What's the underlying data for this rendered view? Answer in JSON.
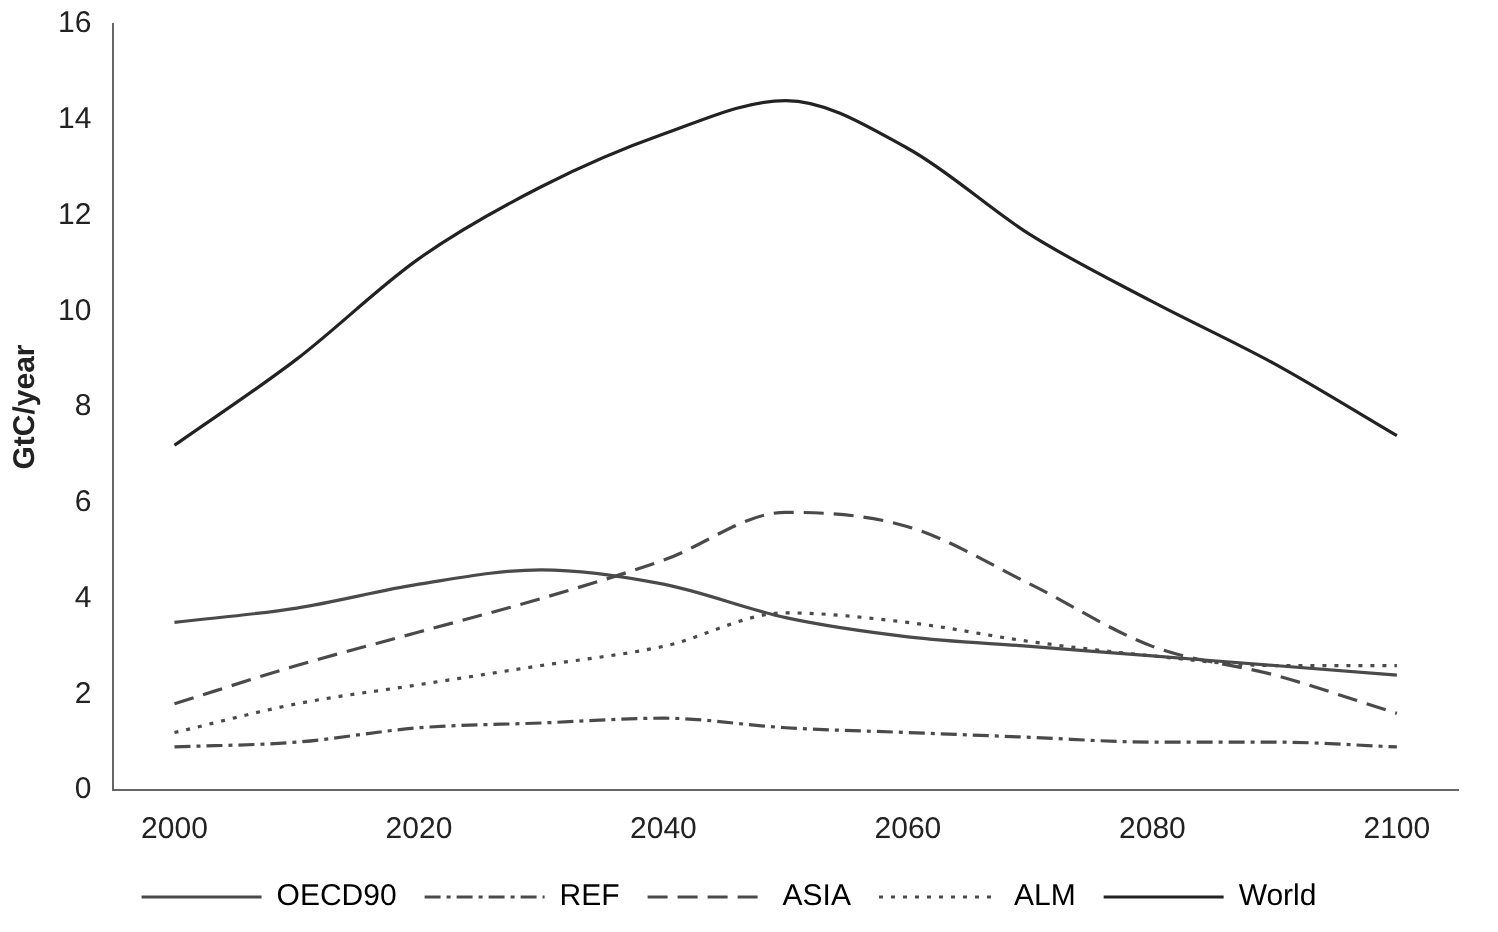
{
  "chart_data": {
    "type": "line",
    "ylabel": "GtC/year",
    "xlim": [
      1995,
      2105
    ],
    "xticks": [
      2000,
      2020,
      2040,
      2060,
      2080,
      2100
    ],
    "ylim": [
      0,
      16
    ],
    "yticks": [
      0,
      2,
      4,
      6,
      8,
      10,
      12,
      14,
      16
    ],
    "grid": false,
    "legend": "bottom",
    "marker": "none",
    "x": [
      2000,
      2010,
      2020,
      2030,
      2040,
      2050,
      2060,
      2070,
      2080,
      2090,
      2100
    ],
    "series": [
      {
        "name": "OECD90",
        "color": "#4a4a4a",
        "line_style": "solid",
        "values": [
          3.5,
          3.8,
          4.3,
          4.6,
          4.3,
          3.6,
          3.2,
          3.0,
          2.8,
          2.6,
          2.4
        ]
      },
      {
        "name": "REF",
        "color": "#4a4a4a",
        "line_style": "dashdot",
        "values": [
          0.9,
          1.0,
          1.3,
          1.4,
          1.5,
          1.3,
          1.2,
          1.1,
          1.0,
          1.0,
          0.9
        ]
      },
      {
        "name": "ASIA",
        "color": "#4a4a4a",
        "line_style": "dashed",
        "values": [
          1.8,
          2.6,
          3.3,
          4.0,
          4.8,
          5.8,
          5.5,
          4.3,
          3.0,
          2.4,
          1.6
        ]
      },
      {
        "name": "ALM",
        "color": "#4a4a4a",
        "line_style": "dotted",
        "values": [
          1.2,
          1.8,
          2.2,
          2.6,
          3.0,
          3.7,
          3.5,
          3.1,
          2.8,
          2.6,
          2.6
        ]
      },
      {
        "name": "World",
        "color": "#222222",
        "line_style": "solid",
        "values": [
          7.2,
          9.0,
          11.1,
          12.6,
          13.7,
          14.4,
          13.4,
          11.6,
          10.2,
          8.9,
          7.4
        ]
      }
    ]
  }
}
